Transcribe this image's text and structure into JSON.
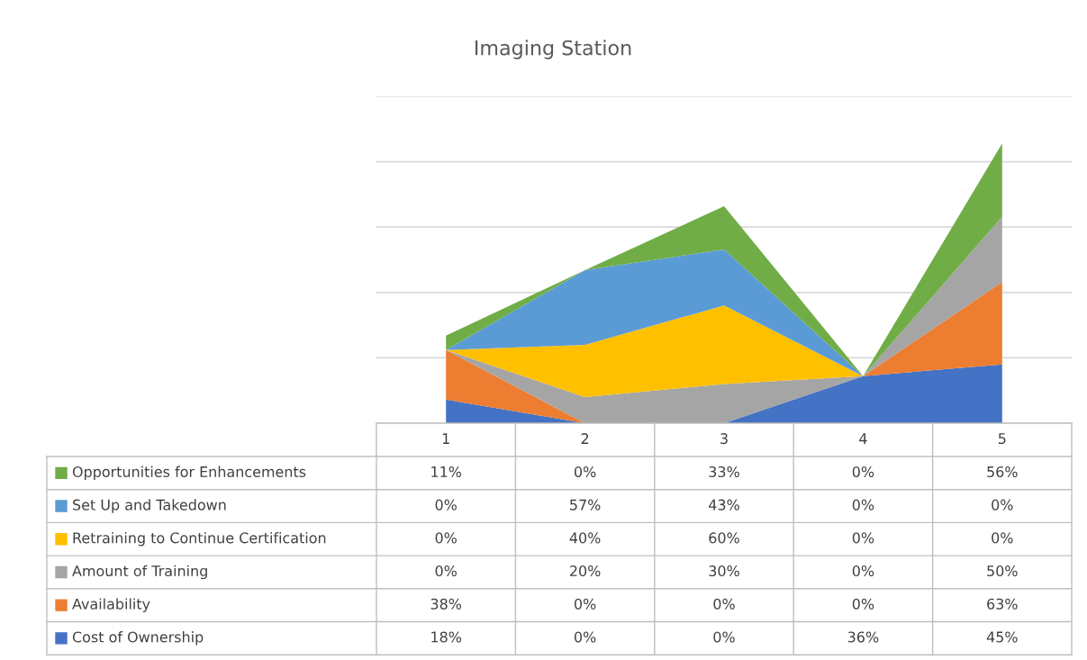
{
  "chart_data": {
    "type": "area",
    "stacked": true,
    "title": "Imaging Station",
    "categories": [
      "1",
      "2",
      "3",
      "4",
      "5"
    ],
    "ylim": [
      0,
      250
    ],
    "yticks": [
      {
        "value": 0,
        "label": null
      },
      {
        "value": 50,
        "label": null
      },
      {
        "value": 100,
        "label": null
      },
      {
        "value": 150,
        "label": null
      },
      {
        "value": 200,
        "label": null
      },
      {
        "value": 250,
        "label": null
      }
    ],
    "grid": "y",
    "tick_labels": "x",
    "data_labels": true,
    "legend": "bottom left",
    "series": [
      {
        "name": "Cost of Ownership",
        "color": "#4472c4",
        "values": [
          18,
          0,
          0,
          36,
          45
        ],
        "value_labels": [
          "18%",
          "0%",
          "0%",
          "36%",
          "45%"
        ]
      },
      {
        "name": "Availability",
        "color": "#ed7d31",
        "values": [
          38,
          0,
          0,
          0,
          63
        ],
        "value_labels": [
          "38%",
          "0%",
          "0%",
          "0%",
          "63%"
        ]
      },
      {
        "name": "Amount of Training",
        "color": "#a5a5a5",
        "values": [
          0,
          20,
          30,
          0,
          50
        ],
        "value_labels": [
          "0%",
          "20%",
          "30%",
          "0%",
          "50%"
        ]
      },
      {
        "name": "Retraining to Continue Certification",
        "color": "#ffc000",
        "values": [
          0,
          40,
          60,
          0,
          0
        ],
        "value_labels": [
          "0%",
          "40%",
          "60%",
          "0%",
          "0%"
        ]
      },
      {
        "name": "Set Up and Takedown",
        "color": "#5b9bd5",
        "values": [
          0,
          57,
          43,
          0,
          0
        ],
        "value_labels": [
          "0%",
          "57%",
          "43%",
          "0%",
          "0%"
        ]
      },
      {
        "name": "Opportunities for Enhancements",
        "color": "#70ad47",
        "values": [
          11,
          0,
          33,
          0,
          56
        ],
        "value_labels": [
          "11%",
          "0%",
          "33%",
          "0%",
          "56%"
        ]
      }
    ]
  }
}
